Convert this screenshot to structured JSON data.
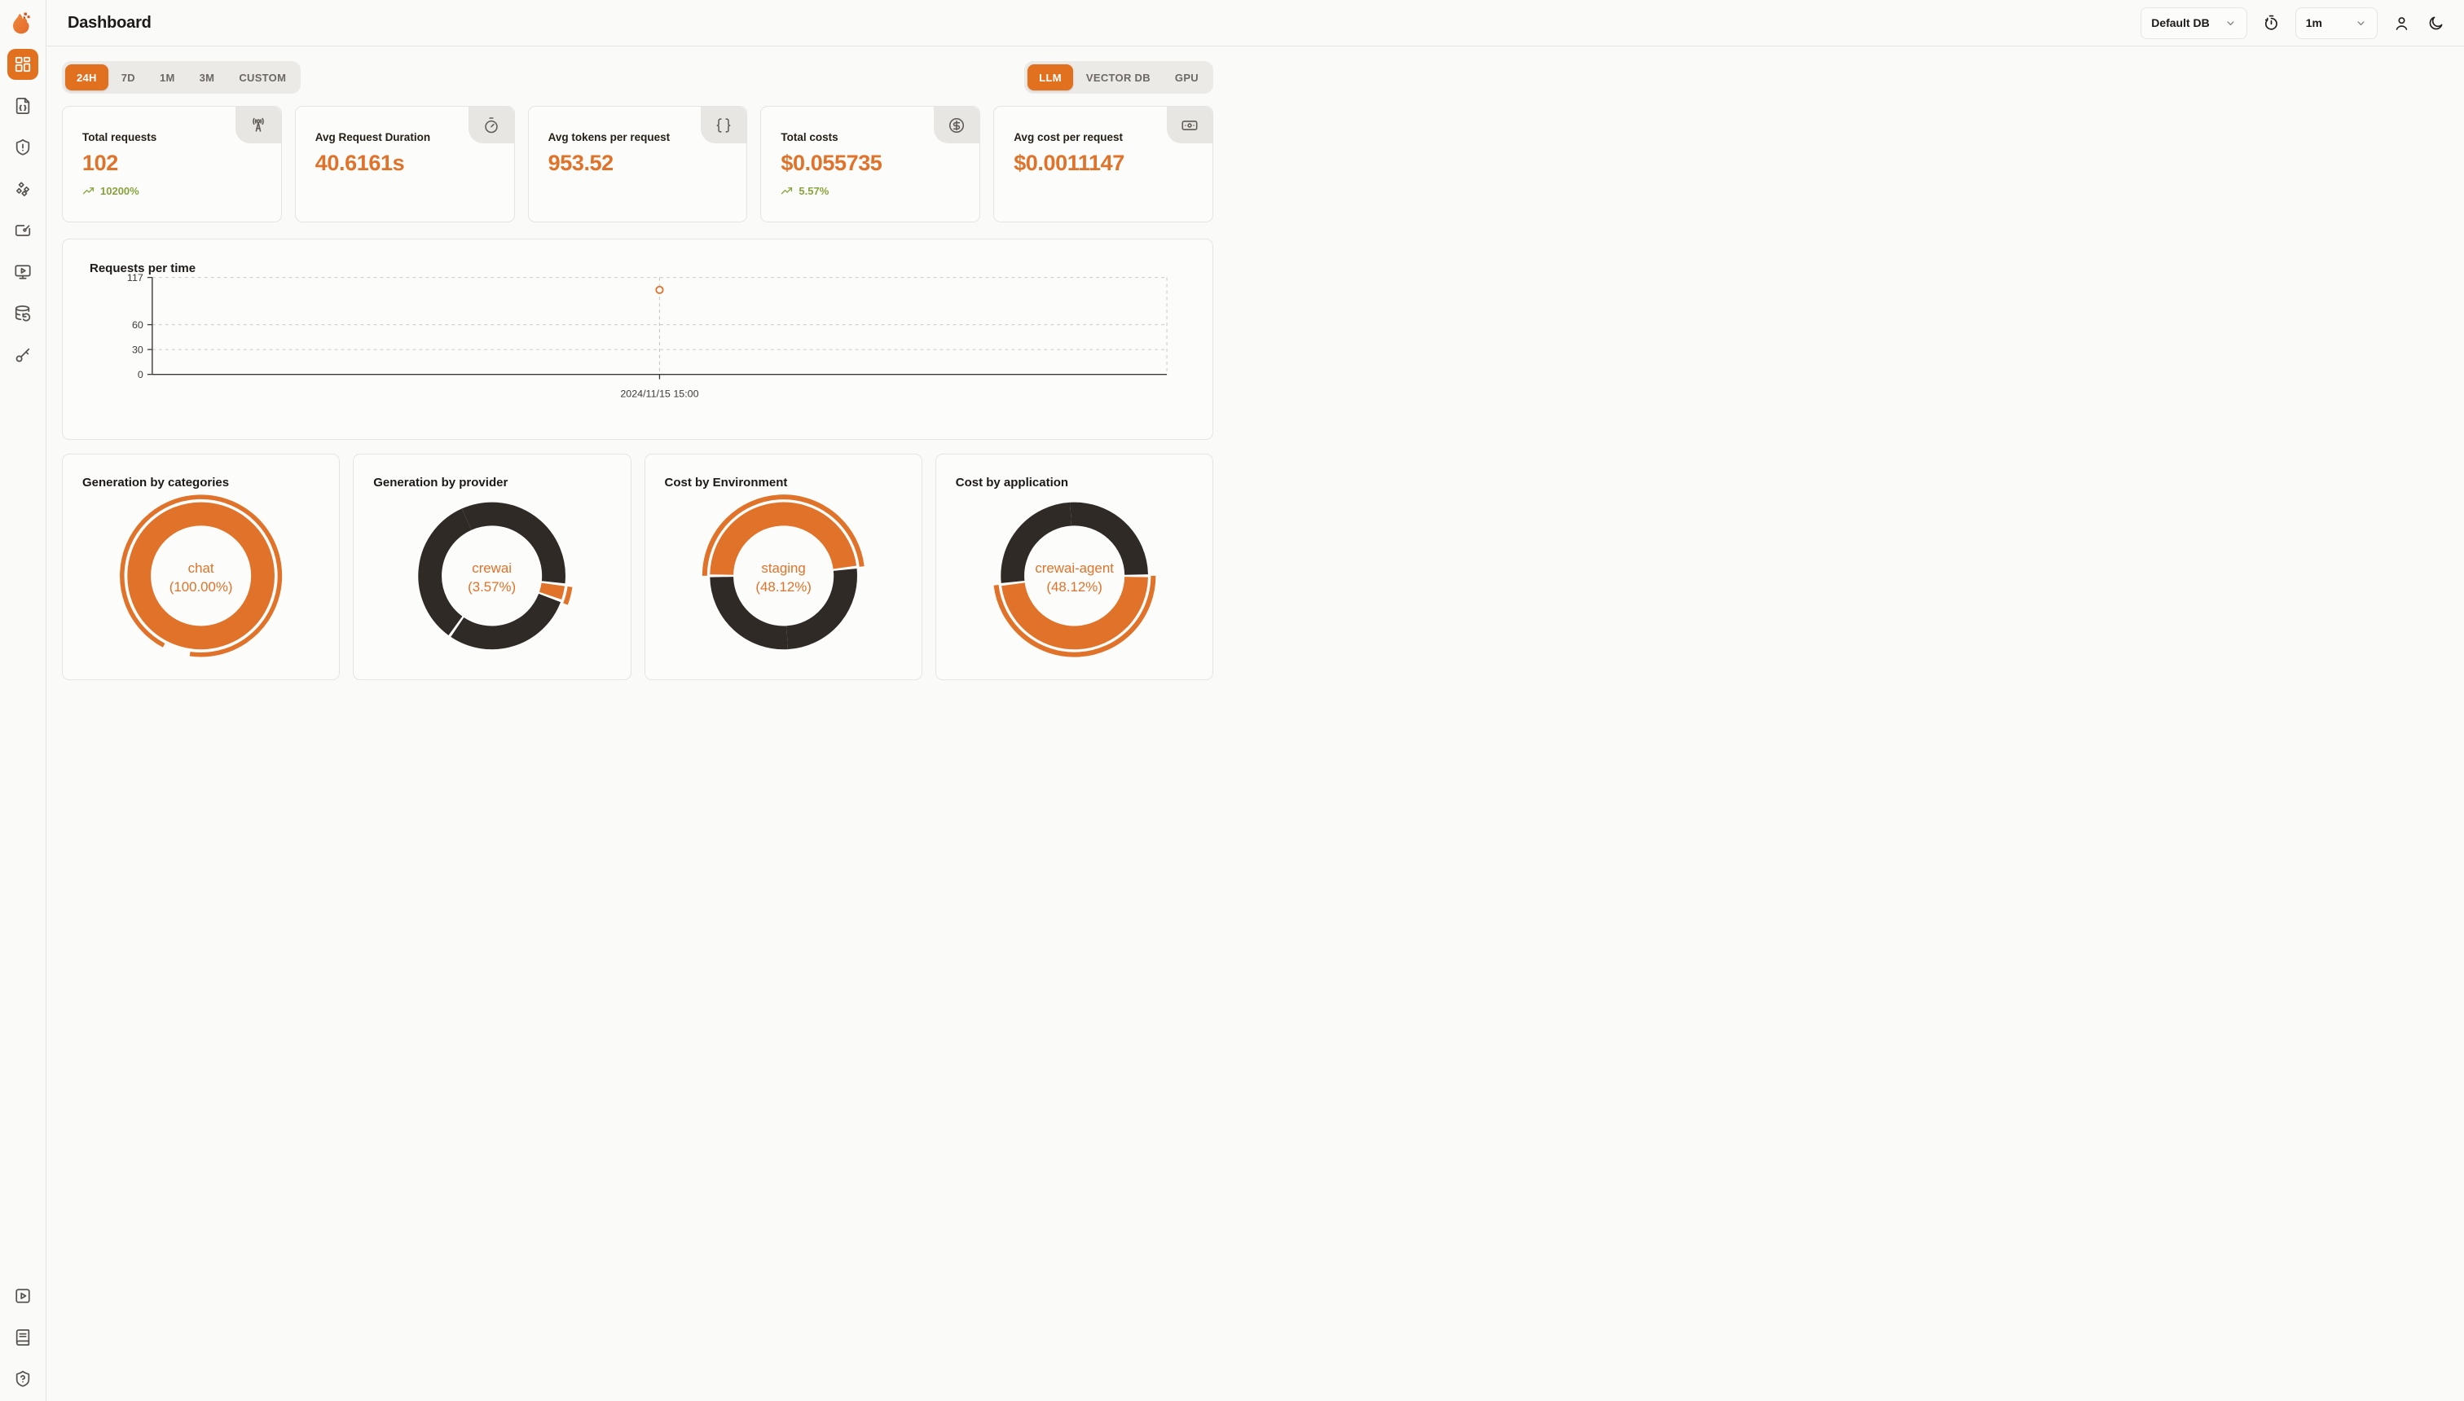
{
  "app": {
    "title": "Dashboard"
  },
  "header": {
    "database_selector": {
      "value": "Default DB",
      "icon": "chevron-down-icon"
    },
    "refresh_interval": {
      "value": "1m",
      "icon": "chevron-down-icon"
    },
    "icons": [
      "timer-reset-icon",
      "user-icon",
      "moon-icon"
    ]
  },
  "sidebar": {
    "items": [
      {
        "name": "dashboard",
        "icon": "layout-dashboard-icon",
        "active": true
      },
      {
        "name": "requests",
        "icon": "file-json-icon"
      },
      {
        "name": "exceptions",
        "icon": "shield-alert-icon"
      },
      {
        "name": "prompt-hub",
        "icon": "diamonds-icon"
      },
      {
        "name": "evaluations",
        "icon": "board-pen-icon"
      },
      {
        "name": "playground",
        "icon": "monitor-play-icon"
      },
      {
        "name": "databases",
        "icon": "database-backup-icon"
      },
      {
        "name": "api-keys",
        "icon": "key-icon"
      }
    ],
    "bottom_items": [
      {
        "name": "demo-video",
        "icon": "square-play-icon"
      },
      {
        "name": "docs",
        "icon": "book-icon"
      },
      {
        "name": "support",
        "icon": "shield-question-icon"
      }
    ]
  },
  "filters": {
    "time_ranges": {
      "items": [
        "24H",
        "7D",
        "1M",
        "3M",
        "CUSTOM"
      ],
      "active": "24H"
    },
    "sources": {
      "items": [
        "LLM",
        "VECTOR DB",
        "GPU"
      ],
      "active": "LLM"
    }
  },
  "stat_cards": [
    {
      "label": "Total requests",
      "value": "102",
      "trend": "10200%",
      "icon": "antenna-icon"
    },
    {
      "label": "Avg Request Duration",
      "value": "40.6161s",
      "trend": "",
      "icon": "timer-icon"
    },
    {
      "label": "Avg tokens per request",
      "value": "953.52",
      "trend": "",
      "icon": "braces-icon"
    },
    {
      "label": "Total costs",
      "value": "$0.055735",
      "trend": "5.57%",
      "icon": "circle-dollar-icon"
    },
    {
      "label": "Avg cost per request",
      "value": "$0.0011147",
      "trend": "",
      "icon": "banknote-icon"
    }
  ],
  "colors": {
    "accent": "#e1701f",
    "orange": "#e0722a",
    "donut_dark": "#302a27",
    "trend_green": "#87a33c"
  },
  "chart_data": [
    {
      "id": "requests-per-time",
      "type": "scatter",
      "title": "Requests per time",
      "x": [
        "2024/11/15 15:00"
      ],
      "values": [
        102
      ],
      "ylim": [
        0,
        117
      ],
      "yticks": [
        0,
        30,
        60,
        117
      ],
      "grid": "dashed-horizontal",
      "point_style": "hollow-circle",
      "point_color": "#e0722a"
    },
    {
      "id": "gen-by-category",
      "type": "pie",
      "title": "Generation by categories",
      "center_label": "chat",
      "center_pct": "(100.00%)",
      "start_angle": 0,
      "emphasis_arc": {
        "start": 208,
        "end": 548
      },
      "segments": [
        {
          "label": "chat",
          "value": 100,
          "color": "#e0722a"
        }
      ]
    },
    {
      "id": "gen-by-provider",
      "type": "pie",
      "title": "Generation by provider",
      "center_label": "crewai",
      "center_pct": "(3.57%)",
      "start_angle": 97,
      "emphasis_arc": {
        "start": 98,
        "end": 111
      },
      "segments": [
        {
          "label": "crewai",
          "value": 3.57,
          "color": "#e0722a"
        },
        {
          "label": "",
          "value": 29.2,
          "color": "#302a27"
        },
        {
          "label": "",
          "value": 67.23,
          "color": "#302a27"
        }
      ]
    },
    {
      "id": "cost-by-env",
      "type": "pie",
      "title": "Cost by Environment",
      "center_label": "staging",
      "center_pct": "(48.12%)",
      "start_angle": -90,
      "emphasis_arc": {
        "start": -90,
        "end": 83.2
      },
      "segments": [
        {
          "label": "staging",
          "value": 48.12,
          "color": "#e0722a"
        },
        {
          "label": "",
          "value": 51.88,
          "color": "#302a27"
        }
      ]
    },
    {
      "id": "cost-by-app",
      "type": "pie",
      "title": "Cost by application",
      "center_label": "crewai-agent",
      "center_pct": "(48.12%)",
      "start_angle": 90,
      "emphasis_arc": {
        "start": 90,
        "end": 263.2
      },
      "segments": [
        {
          "label": "crewai-agent",
          "value": 48.12,
          "color": "#e0722a"
        },
        {
          "label": "",
          "value": 51.88,
          "color": "#302a27"
        }
      ]
    }
  ]
}
